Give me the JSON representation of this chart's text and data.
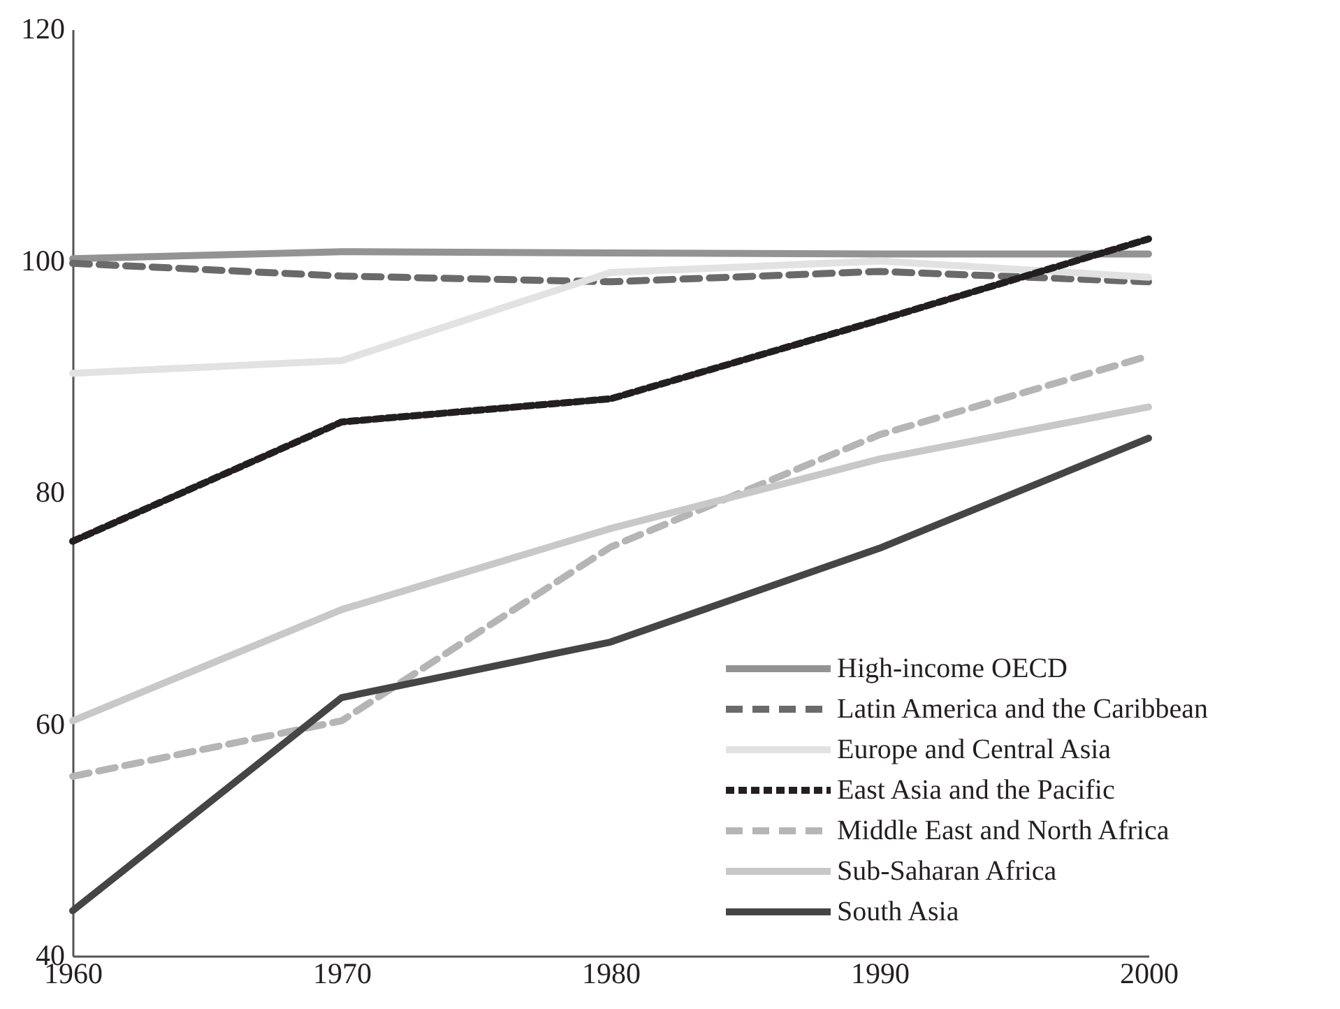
{
  "chart_data": {
    "type": "line",
    "x": [
      1960,
      1970,
      1980,
      1990,
      2000
    ],
    "xlim": [
      1960,
      2000
    ],
    "xticks": [
      1960,
      1970,
      1980,
      1990,
      2000
    ],
    "ylim": [
      40,
      120
    ],
    "yticks": [
      40,
      60,
      80,
      100,
      120
    ],
    "grid": false,
    "legend": "bottom right",
    "series": [
      {
        "name": "High-income OECD",
        "color": "#939393",
        "line_style": "solid",
        "values": [
          100.2,
          100.8,
          100.7,
          100.6,
          100.6
        ]
      },
      {
        "name": "Latin America and the Caribbean",
        "color": "#6a6a6a",
        "line_style": "dashed",
        "values": [
          99.8,
          98.7,
          98.2,
          99.1,
          98.2
        ]
      },
      {
        "name": "Europe and Central Asia",
        "color": "#e2e2e2",
        "line_style": "solid",
        "values": [
          90.3,
          91.4,
          99,
          100,
          98.6
        ]
      },
      {
        "name": "East Asia and the Pacific",
        "color": "#231f20",
        "line_style": "dotted",
        "values": [
          75.8,
          86.1,
          88.1,
          94.9,
          101.9
        ]
      },
      {
        "name": "Middle East and North Africa",
        "color": "#b5b5b5",
        "line_style": "dashed",
        "values": [
          55.5,
          60.3,
          75.3,
          85,
          91.8
        ]
      },
      {
        "name": "Sub-Saharan Africa",
        "color": "#c8c8c8",
        "line_style": "solid",
        "values": [
          60.3,
          69.9,
          76.9,
          82.9,
          87.4
        ]
      },
      {
        "name": "South Asia",
        "color": "#454545",
        "line_style": "solid",
        "values": [
          43.9,
          62.3,
          67.1,
          75.2,
          84.7
        ]
      }
    ]
  }
}
